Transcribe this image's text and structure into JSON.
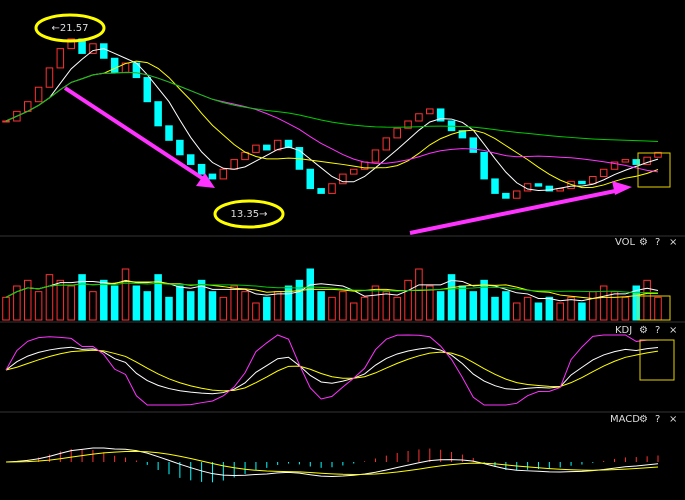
{
  "chart_data": {
    "type": "candlestick",
    "annotations": {
      "high": {
        "value": 21.57,
        "label": "←21.57"
      },
      "low": {
        "value": 13.35,
        "label": "13.35→"
      }
    },
    "panels": [
      "VOL",
      "KDJ",
      "MACD"
    ],
    "icons": [
      "?",
      "×"
    ],
    "ylim": [
      13,
      22.2
    ],
    "closes": [
      17.6,
      18.0,
      18.4,
      19.0,
      19.8,
      20.6,
      21.0,
      20.4,
      20.8,
      20.2,
      19.6,
      20.0,
      19.4,
      18.4,
      17.4,
      16.8,
      16.2,
      15.8,
      15.4,
      15.2,
      15.6,
      16.0,
      16.3,
      16.6,
      16.4,
      16.8,
      16.5,
      15.6,
      14.8,
      14.6,
      15.0,
      15.4,
      15.6,
      15.9,
      16.4,
      16.9,
      17.3,
      17.6,
      17.9,
      18.1,
      17.6,
      17.2,
      16.9,
      16.3,
      15.2,
      14.6,
      14.4,
      14.7,
      15.0,
      14.9,
      14.7,
      14.8,
      15.1,
      15.0,
      15.3,
      15.6,
      15.9,
      16.0,
      15.8,
      16.1,
      16.3
    ],
    "volumes": [
      4,
      6,
      7,
      5,
      8,
      7,
      6,
      8,
      5,
      7,
      6,
      9,
      6,
      5,
      8,
      4,
      6,
      5,
      7,
      5,
      4,
      6,
      5,
      3,
      4,
      5,
      6,
      7,
      9,
      5,
      4,
      5,
      3,
      4,
      6,
      5,
      4,
      7,
      9,
      6,
      5,
      8,
      6,
      5,
      7,
      4,
      5,
      3,
      4,
      3,
      4,
      3,
      4,
      3,
      5,
      6,
      5,
      4,
      6,
      7,
      4
    ],
    "vol_max": 12
  }
}
